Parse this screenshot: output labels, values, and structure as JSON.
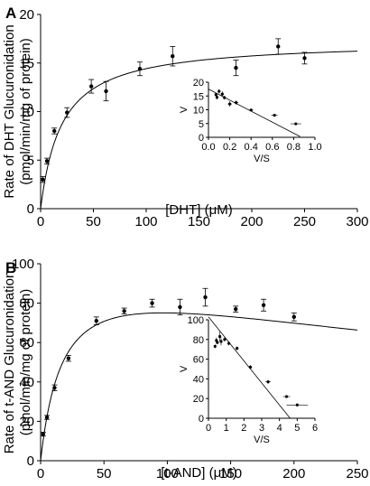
{
  "chart_data": [
    {
      "panel_label": "A",
      "type": "scatter",
      "ylabel": "Rate of DHT Glucuronidation",
      "ylabel2": "(pmol/min/mg of protein)",
      "xlabel": "[DHT] (μM)",
      "xlim": [
        0,
        300
      ],
      "ylim": [
        0,
        20
      ],
      "xticks": [
        0,
        50,
        100,
        150,
        200,
        250,
        300
      ],
      "yticks": [
        0,
        5,
        10,
        15,
        20
      ],
      "grid": false,
      "points": [
        {
          "x": 2,
          "y": 3.0,
          "err": 0.3
        },
        {
          "x": 6,
          "y": 4.9,
          "err": 0.3
        },
        {
          "x": 13,
          "y": 8.0,
          "err": 0.3
        },
        {
          "x": 25,
          "y": 9.9,
          "err": 0.5
        },
        {
          "x": 48,
          "y": 12.6,
          "err": 0.7
        },
        {
          "x": 62,
          "y": 12.1,
          "err": 1.0
        },
        {
          "x": 94,
          "y": 14.4,
          "err": 0.7
        },
        {
          "x": 125,
          "y": 15.7,
          "err": 1.0
        },
        {
          "x": 185,
          "y": 14.5,
          "err": 0.8
        },
        {
          "x": 225,
          "y": 16.7,
          "err": 0.8
        },
        {
          "x": 250,
          "y": 15.5,
          "err": 0.6
        }
      ],
      "curve": {
        "model": "michaelis-menten",
        "vmax": 17.3,
        "km": 20
      },
      "inset": {
        "xlabel": "V/S",
        "ylabel": "V",
        "xlim": [
          0,
          1.0
        ],
        "ylim": [
          0,
          20
        ],
        "xticks": [
          0.0,
          0.2,
          0.4,
          0.6,
          0.8,
          1.0
        ],
        "xtick_labels": [
          "0.0",
          "0.2",
          "0.4",
          "0.6",
          "0.8",
          "1.0"
        ],
        "yticks": [
          0,
          5,
          10,
          15,
          20
        ],
        "points": [
          {
            "x": 0.07,
            "y": 15.5,
            "xerr": 0.01,
            "yerr": 0.6
          },
          {
            "x": 0.1,
            "y": 16.7,
            "xerr": 0.01,
            "yerr": 0.8
          },
          {
            "x": 0.08,
            "y": 14.5,
            "xerr": 0.01,
            "yerr": 0.8
          },
          {
            "x": 0.13,
            "y": 15.7,
            "xerr": 0.01,
            "yerr": 1.0
          },
          {
            "x": 0.15,
            "y": 14.4,
            "xerr": 0.01,
            "yerr": 0.7
          },
          {
            "x": 0.2,
            "y": 12.1,
            "xerr": 0.02,
            "yerr": 1.0
          },
          {
            "x": 0.26,
            "y": 12.6,
            "xerr": 0.02,
            "yerr": 0.7
          },
          {
            "x": 0.4,
            "y": 9.9,
            "xerr": 0.02,
            "yerr": 0.5
          },
          {
            "x": 0.62,
            "y": 8.0,
            "xerr": 0.03,
            "yerr": 0.3
          },
          {
            "x": 0.82,
            "y": 4.9,
            "xerr": 0.05,
            "yerr": 0.3
          }
        ],
        "line": {
          "x0": 0.0,
          "y0": 17.5,
          "x1": 0.86,
          "y1": 0.3
        }
      }
    },
    {
      "panel_label": "B",
      "type": "scatter",
      "ylabel": "Rate of t-AND Glucuronidation",
      "ylabel2": "(pmol/min/mg of protein)",
      "xlabel": "[t-AND] (μM)",
      "xlim": [
        0,
        250
      ],
      "ylim": [
        0,
        100
      ],
      "xticks": [
        0,
        50,
        100,
        150,
        200,
        250
      ],
      "yticks": [
        0,
        20,
        40,
        60,
        80,
        100
      ],
      "grid": false,
      "points": [
        {
          "x": 2,
          "y": 13.5,
          "err": 1.0
        },
        {
          "x": 5,
          "y": 22,
          "err": 1.0
        },
        {
          "x": 11,
          "y": 37,
          "err": 1.5
        },
        {
          "x": 22,
          "y": 52,
          "err": 1.5
        },
        {
          "x": 44,
          "y": 71,
          "err": 2.0
        },
        {
          "x": 66,
          "y": 76,
          "err": 1.5
        },
        {
          "x": 88,
          "y": 80,
          "err": 2.0
        },
        {
          "x": 110,
          "y": 78,
          "err": 4.0
        },
        {
          "x": 130,
          "y": 83,
          "err": 4.5
        },
        {
          "x": 154,
          "y": 77,
          "err": 1.5
        },
        {
          "x": 176,
          "y": 79,
          "err": 3.0
        },
        {
          "x": 200,
          "y": 73,
          "err": 2.0
        }
      ],
      "curve": {
        "model": "substrate-inhibition",
        "vmax": 103,
        "km": 18,
        "ki": 520
      },
      "inset": {
        "xlabel": "V/S",
        "ylabel": "V",
        "xlim": [
          0,
          6
        ],
        "ylim": [
          0,
          100
        ],
        "xticks": [
          0,
          1,
          2,
          3,
          4,
          5,
          6
        ],
        "xtick_labels": [
          "0",
          "1",
          "2",
          "3",
          "4",
          "5",
          "6"
        ],
        "yticks": [
          0,
          20,
          40,
          60,
          80,
          100
        ],
        "points": [
          {
            "x": 0.37,
            "y": 73,
            "xerr": 0.05,
            "yerr": 2
          },
          {
            "x": 0.45,
            "y": 79,
            "xerr": 0.05,
            "yerr": 3
          },
          {
            "x": 0.5,
            "y": 77,
            "xerr": 0.05,
            "yerr": 2
          },
          {
            "x": 0.64,
            "y": 83,
            "xerr": 0.05,
            "yerr": 5
          },
          {
            "x": 0.71,
            "y": 78,
            "xerr": 0.05,
            "yerr": 4
          },
          {
            "x": 0.91,
            "y": 80,
            "xerr": 0.05,
            "yerr": 2
          },
          {
            "x": 1.15,
            "y": 76,
            "xerr": 0.05,
            "yerr": 2
          },
          {
            "x": 1.61,
            "y": 71,
            "xerr": 0.08,
            "yerr": 2
          },
          {
            "x": 2.36,
            "y": 52,
            "xerr": 0.1,
            "yerr": 2
          },
          {
            "x": 3.36,
            "y": 37,
            "xerr": 0.15,
            "yerr": 2
          },
          {
            "x": 4.4,
            "y": 22,
            "xerr": 0.2,
            "yerr": 1
          },
          {
            "x": 5.0,
            "y": 13.5,
            "xerr": 0.6,
            "yerr": 1
          }
        ],
        "line": {
          "x0": 0.0,
          "y0": 103,
          "x1": 4.6,
          "y1": 0
        }
      }
    }
  ]
}
